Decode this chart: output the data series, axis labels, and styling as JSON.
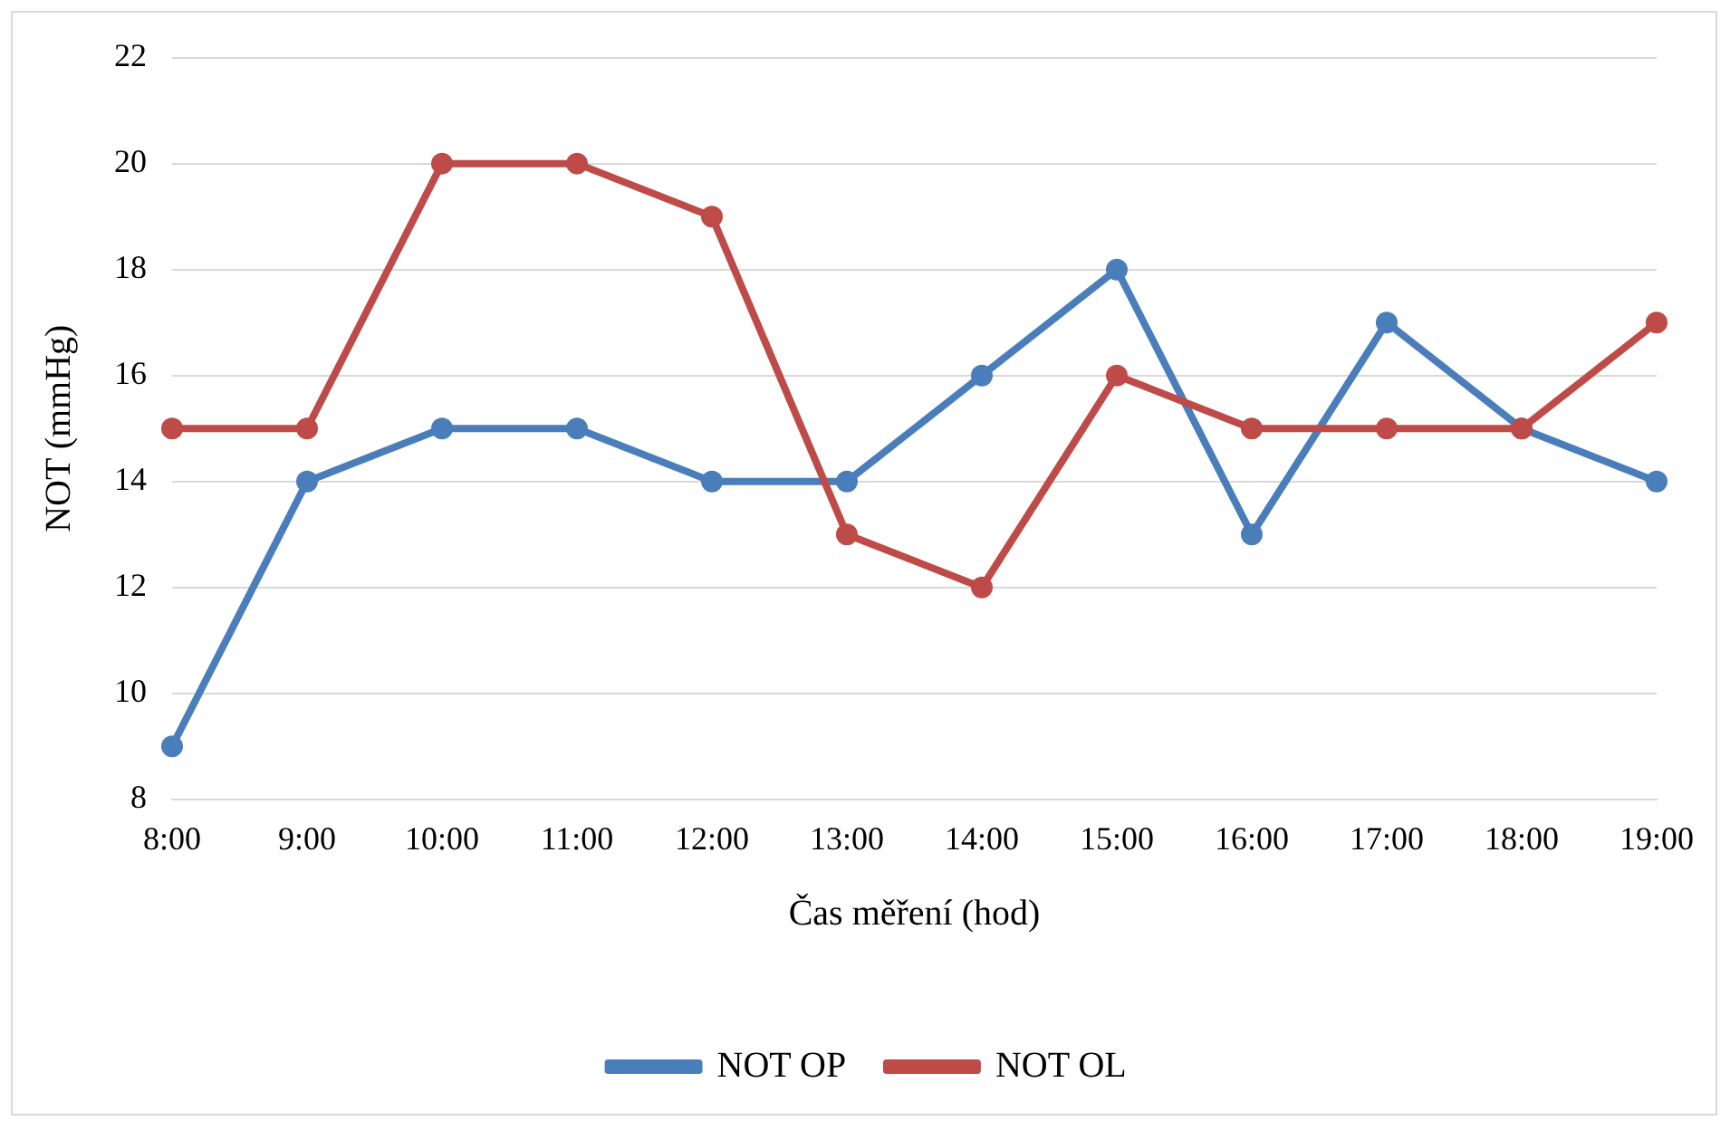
{
  "chart_data": {
    "type": "line",
    "xlabel": "Čas měření (hod)",
    "ylabel": "NOT (mmHg)",
    "categories": [
      "8:00",
      "9:00",
      "10:00",
      "11:00",
      "12:00",
      "13:00",
      "14:00",
      "15:00",
      "16:00",
      "17:00",
      "18:00",
      "19:00"
    ],
    "series": [
      {
        "name": "NOT OP",
        "color": "#4a7ebb",
        "values": [
          9,
          14,
          15,
          15,
          14,
          14,
          16,
          18,
          13,
          17,
          15,
          14
        ]
      },
      {
        "name": "NOT OL",
        "color": "#be4b48",
        "values": [
          15,
          15,
          20,
          20,
          19,
          13,
          12,
          16,
          15,
          15,
          15,
          17
        ]
      }
    ],
    "ylim": [
      8,
      22
    ],
    "yticks": [
      8,
      10,
      12,
      14,
      16,
      18,
      20,
      22
    ],
    "grid": "y",
    "legend": "bottom",
    "marker": "circle",
    "line_style": "solid"
  }
}
